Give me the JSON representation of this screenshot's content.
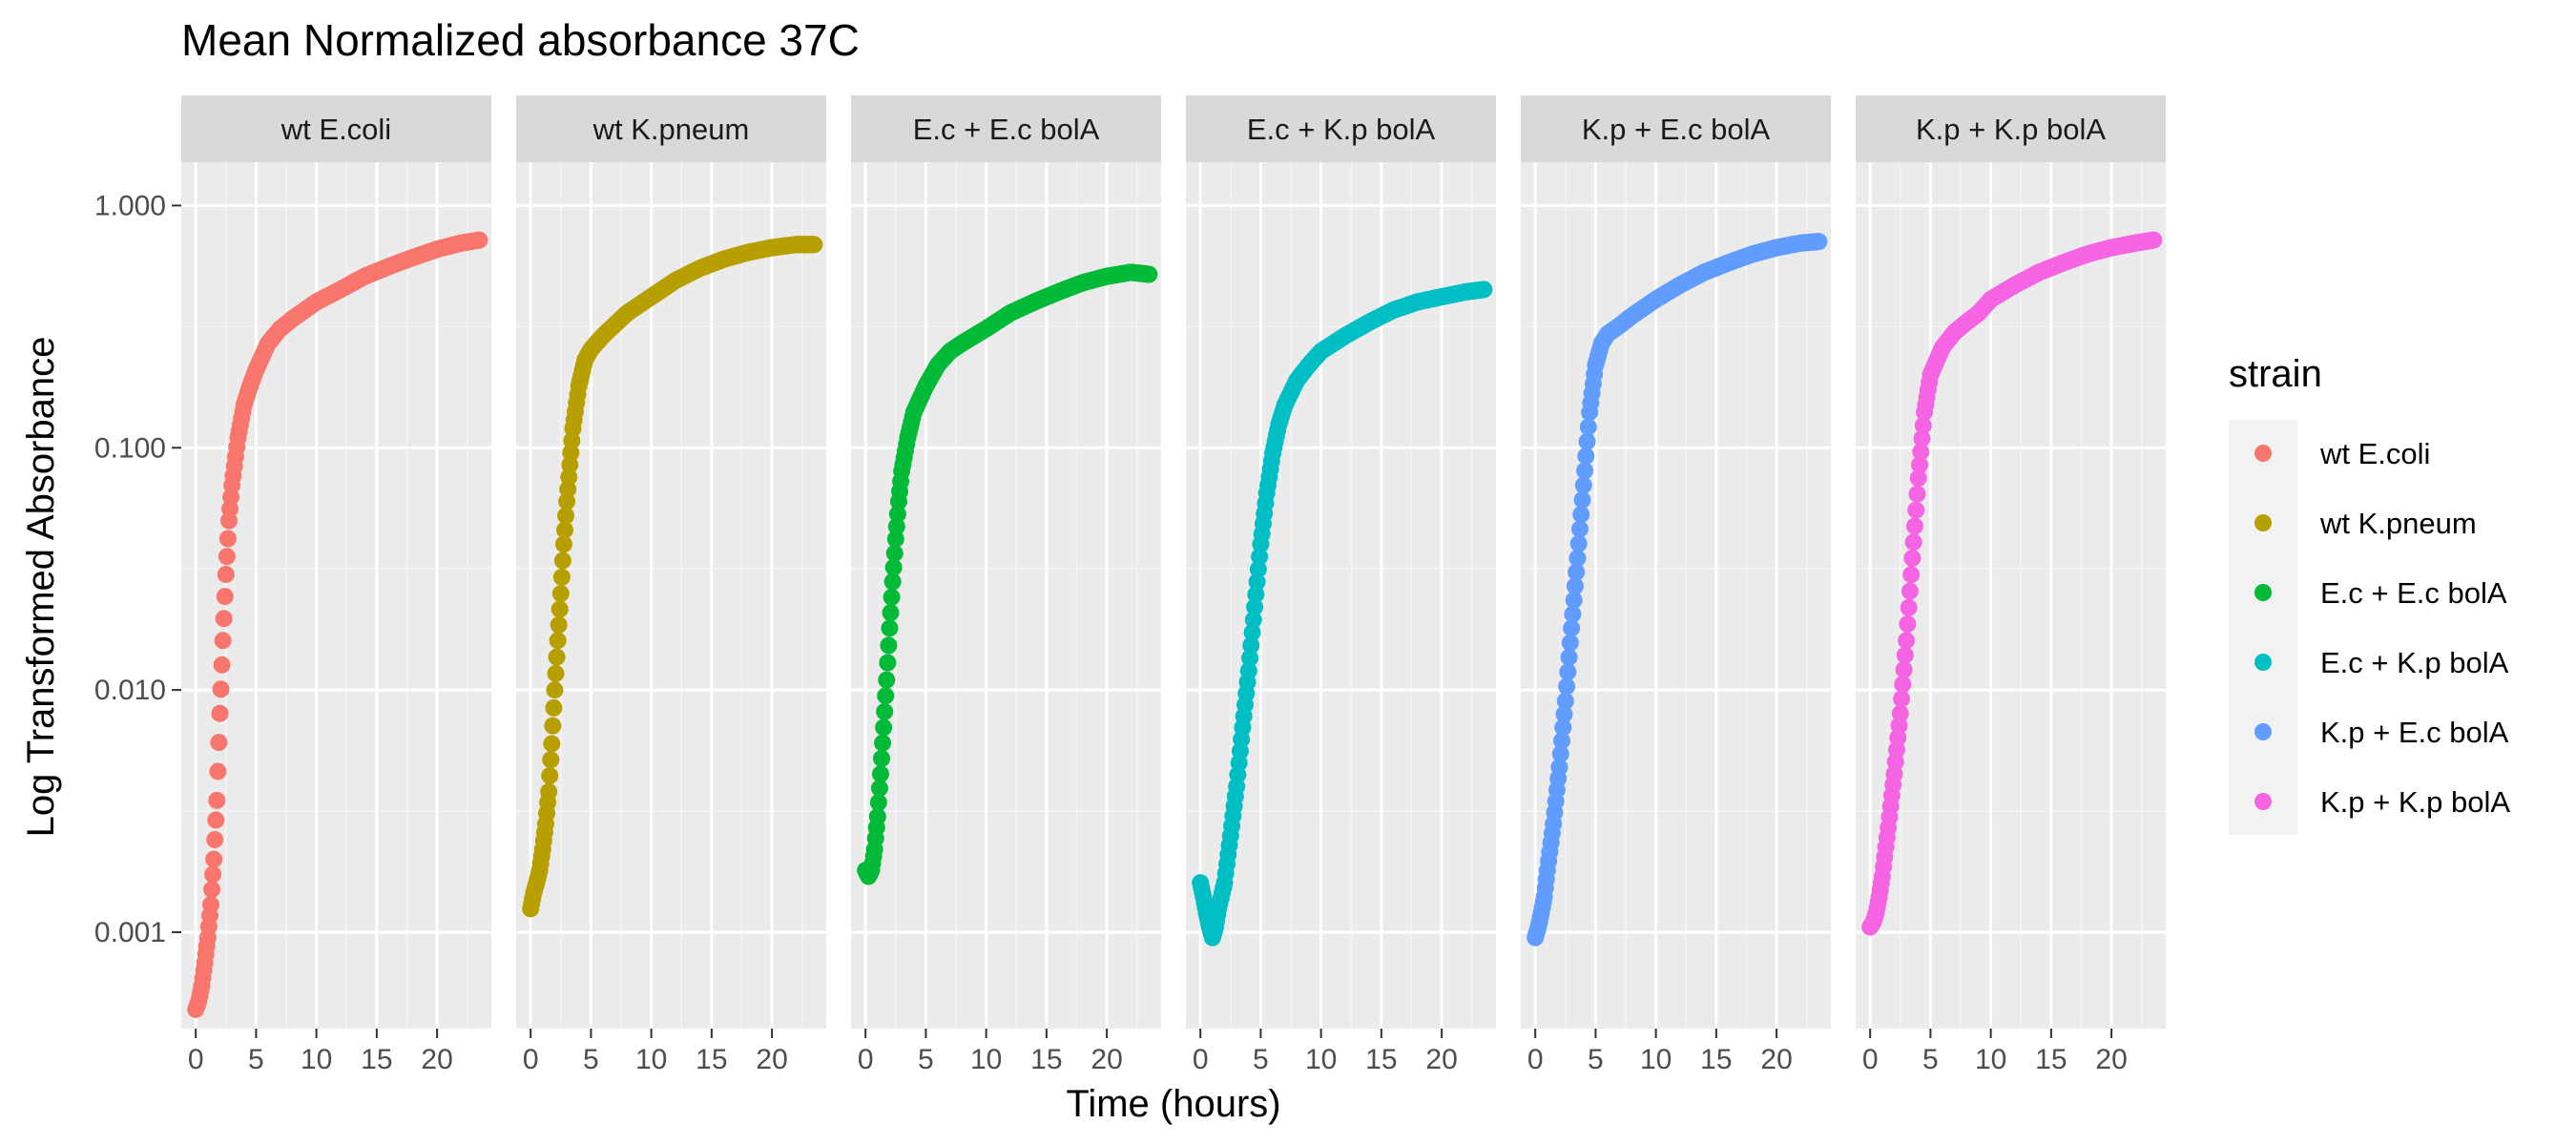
{
  "chart_data": {
    "type": "scatter",
    "title": "Mean Normalized absorbance 37C",
    "xlabel": "Time (hours)",
    "ylabel": "Log Transformed Absorbance",
    "y_scale": "log10",
    "ylim": [
      0.0004,
      1.0
    ],
    "xlim": [
      -1.2,
      24.5
    ],
    "x_ticks": [
      0,
      5,
      10,
      15,
      20
    ],
    "x_tick_labels": [
      "0",
      "5",
      "10",
      "15",
      "20"
    ],
    "y_ticks": [
      0.001,
      0.01,
      0.1,
      1.0
    ],
    "y_tick_labels": [
      "0.001",
      "0.010",
      "0.100",
      "1.000"
    ],
    "grid": true,
    "facet_by": "strain",
    "legend": {
      "title": "strain",
      "placement": "right"
    },
    "series": [
      {
        "name": "wt E.coli",
        "color": "#F8766D",
        "points": [
          [
            0.0,
            0.00048
          ],
          [
            0.25,
            0.00052
          ],
          [
            0.5,
            0.0006
          ],
          [
            0.75,
            0.00075
          ],
          [
            1.0,
            0.00095
          ],
          [
            1.25,
            0.0013
          ],
          [
            1.5,
            0.002
          ],
          [
            1.75,
            0.0035
          ],
          [
            2.0,
            0.008
          ],
          [
            2.25,
            0.016
          ],
          [
            2.5,
            0.03
          ],
          [
            2.75,
            0.05
          ],
          [
            3.0,
            0.07
          ],
          [
            3.5,
            0.11
          ],
          [
            4.0,
            0.15
          ],
          [
            4.5,
            0.18
          ],
          [
            5.0,
            0.21
          ],
          [
            6.0,
            0.27
          ],
          [
            7.0,
            0.31
          ],
          [
            8.0,
            0.34
          ],
          [
            10.0,
            0.4
          ],
          [
            12.0,
            0.45
          ],
          [
            14.0,
            0.51
          ],
          [
            16.0,
            0.56
          ],
          [
            18.0,
            0.61
          ],
          [
            20.0,
            0.66
          ],
          [
            22.0,
            0.7
          ],
          [
            23.5,
            0.72
          ]
        ]
      },
      {
        "name": "wt K.pneum",
        "color": "#B79F00",
        "points": [
          [
            0.0,
            0.00125
          ],
          [
            0.25,
            0.00145
          ],
          [
            0.5,
            0.0016
          ],
          [
            0.75,
            0.0018
          ],
          [
            1.0,
            0.0022
          ],
          [
            1.25,
            0.0028
          ],
          [
            1.5,
            0.0038
          ],
          [
            1.75,
            0.006
          ],
          [
            2.0,
            0.01
          ],
          [
            2.25,
            0.016
          ],
          [
            2.5,
            0.025
          ],
          [
            2.75,
            0.04
          ],
          [
            3.0,
            0.06
          ],
          [
            3.25,
            0.085
          ],
          [
            3.5,
            0.12
          ],
          [
            4.0,
            0.18
          ],
          [
            4.5,
            0.23
          ],
          [
            5.0,
            0.255
          ],
          [
            6.0,
            0.29
          ],
          [
            8.0,
            0.36
          ],
          [
            10.0,
            0.42
          ],
          [
            12.0,
            0.49
          ],
          [
            14.0,
            0.55
          ],
          [
            16.0,
            0.6
          ],
          [
            18.0,
            0.64
          ],
          [
            20.0,
            0.67
          ],
          [
            22.0,
            0.69
          ],
          [
            23.5,
            0.69
          ]
        ]
      },
      {
        "name": "E.c + E.c bolA",
        "color": "#00BA38",
        "points": [
          [
            0.0,
            0.0018
          ],
          [
            0.25,
            0.0017
          ],
          [
            0.5,
            0.0018
          ],
          [
            0.75,
            0.0022
          ],
          [
            1.0,
            0.003
          ],
          [
            1.25,
            0.0045
          ],
          [
            1.5,
            0.007
          ],
          [
            1.75,
            0.011
          ],
          [
            2.0,
            0.018
          ],
          [
            2.25,
            0.028
          ],
          [
            2.5,
            0.042
          ],
          [
            2.75,
            0.06
          ],
          [
            3.0,
            0.08
          ],
          [
            3.5,
            0.11
          ],
          [
            4.0,
            0.14
          ],
          [
            5.0,
            0.18
          ],
          [
            6.0,
            0.22
          ],
          [
            7.0,
            0.25
          ],
          [
            8.0,
            0.27
          ],
          [
            10.0,
            0.31
          ],
          [
            12.0,
            0.36
          ],
          [
            14.0,
            0.4
          ],
          [
            16.0,
            0.44
          ],
          [
            18.0,
            0.48
          ],
          [
            20.0,
            0.51
          ],
          [
            22.0,
            0.53
          ],
          [
            23.5,
            0.52
          ]
        ]
      },
      {
        "name": "E.c + K.p bolA",
        "color": "#00BFC4",
        "points": [
          [
            0.0,
            0.0016
          ],
          [
            0.25,
            0.0014
          ],
          [
            0.5,
            0.0012
          ],
          [
            0.75,
            0.00105
          ],
          [
            1.0,
            0.00095
          ],
          [
            1.25,
            0.00105
          ],
          [
            1.5,
            0.00125
          ],
          [
            2.0,
            0.0016
          ],
          [
            2.5,
            0.0025
          ],
          [
            3.0,
            0.004
          ],
          [
            3.5,
            0.007
          ],
          [
            4.0,
            0.012
          ],
          [
            4.5,
            0.022
          ],
          [
            5.0,
            0.04
          ],
          [
            5.5,
            0.065
          ],
          [
            6.0,
            0.095
          ],
          [
            6.5,
            0.125
          ],
          [
            7.0,
            0.15
          ],
          [
            8.0,
            0.19
          ],
          [
            9.0,
            0.22
          ],
          [
            10.0,
            0.25
          ],
          [
            12.0,
            0.29
          ],
          [
            14.0,
            0.33
          ],
          [
            16.0,
            0.37
          ],
          [
            18.0,
            0.4
          ],
          [
            20.0,
            0.42
          ],
          [
            22.0,
            0.44
          ],
          [
            23.5,
            0.45
          ]
        ]
      },
      {
        "name": "K.p + E.c bolA",
        "color": "#619CFF",
        "points": [
          [
            0.0,
            0.00095
          ],
          [
            0.25,
            0.00105
          ],
          [
            0.5,
            0.0012
          ],
          [
            0.75,
            0.0014
          ],
          [
            1.0,
            0.0018
          ],
          [
            1.5,
            0.0028
          ],
          [
            2.0,
            0.0048
          ],
          [
            2.5,
            0.009
          ],
          [
            3.0,
            0.018
          ],
          [
            3.5,
            0.035
          ],
          [
            4.0,
            0.07
          ],
          [
            4.5,
            0.14
          ],
          [
            5.0,
            0.22
          ],
          [
            5.5,
            0.27
          ],
          [
            6.0,
            0.295
          ],
          [
            7.0,
            0.32
          ],
          [
            8.0,
            0.35
          ],
          [
            10.0,
            0.41
          ],
          [
            12.0,
            0.47
          ],
          [
            14.0,
            0.53
          ],
          [
            16.0,
            0.58
          ],
          [
            18.0,
            0.63
          ],
          [
            20.0,
            0.67
          ],
          [
            22.0,
            0.7
          ],
          [
            23.5,
            0.71
          ]
        ]
      },
      {
        "name": "K.p + K.p bolA",
        "color": "#F564E3",
        "points": [
          [
            0.0,
            0.00105
          ],
          [
            0.25,
            0.0011
          ],
          [
            0.5,
            0.0012
          ],
          [
            0.75,
            0.0014
          ],
          [
            1.0,
            0.0017
          ],
          [
            1.5,
            0.0027
          ],
          [
            2.0,
            0.0045
          ],
          [
            2.5,
            0.008
          ],
          [
            3.0,
            0.016
          ],
          [
            3.5,
            0.035
          ],
          [
            4.0,
            0.075
          ],
          [
            4.5,
            0.14
          ],
          [
            5.0,
            0.2
          ],
          [
            6.0,
            0.26
          ],
          [
            7.0,
            0.3
          ],
          [
            8.0,
            0.33
          ],
          [
            9.0,
            0.36
          ],
          [
            10.0,
            0.41
          ],
          [
            12.0,
            0.47
          ],
          [
            14.0,
            0.53
          ],
          [
            16.0,
            0.58
          ],
          [
            18.0,
            0.63
          ],
          [
            20.0,
            0.67
          ],
          [
            22.0,
            0.7
          ],
          [
            23.5,
            0.72
          ]
        ]
      }
    ]
  }
}
